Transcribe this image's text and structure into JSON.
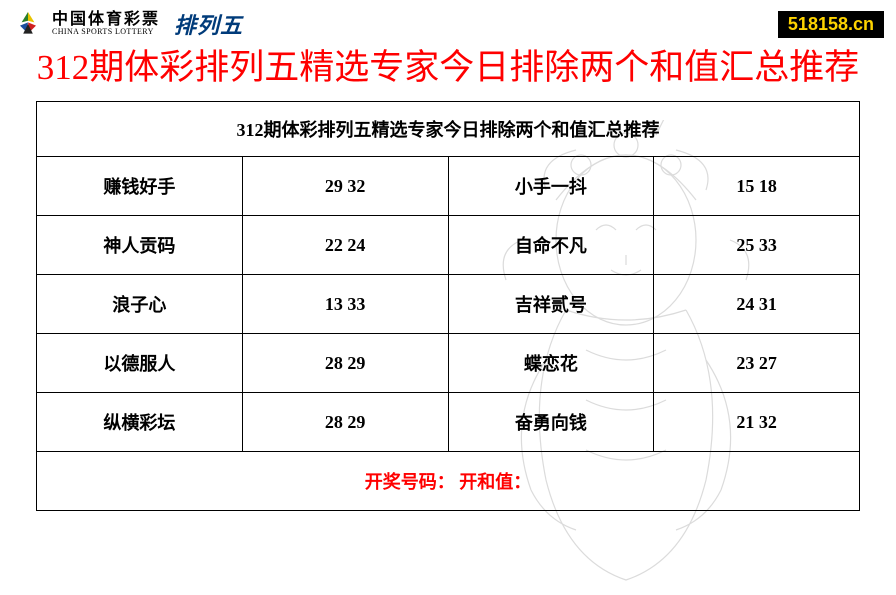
{
  "header": {
    "brand_cn": "中国体育彩票",
    "brand_en": "CHINA SPORTS LOTTERY",
    "brand_extra": "排列五",
    "url_badge": "518158.cn"
  },
  "main_title": "312期体彩排列五精选专家今日排除两个和值汇总推荐",
  "table": {
    "caption": "312期体彩排列五精选专家今日排除两个和值汇总推荐",
    "rows": [
      {
        "name_a": "赚钱好手",
        "val_a": "29 32",
        "name_b": "小手一抖",
        "val_b": "15 18"
      },
      {
        "name_a": "神人贡码",
        "val_a": "22 24",
        "name_b": "自命不凡",
        "val_b": "25 33"
      },
      {
        "name_a": "浪子心",
        "val_a": "13 33",
        "name_b": "吉祥贰号",
        "val_b": "24 31"
      },
      {
        "name_a": "以德服人",
        "val_a": "28 29",
        "name_b": "蝶恋花",
        "val_b": "23 27"
      },
      {
        "name_a": "纵横彩坛",
        "val_a": "28 29",
        "name_b": "奋勇向钱",
        "val_b": "21 32"
      }
    ],
    "footer": "开奖号码：  开和值："
  },
  "colors": {
    "title": "#ff0000",
    "footer": "#ff0000",
    "badge_bg": "#000000",
    "badge_fg": "#ffd400",
    "border": "#000000",
    "brand_extra": "#003b7a"
  }
}
